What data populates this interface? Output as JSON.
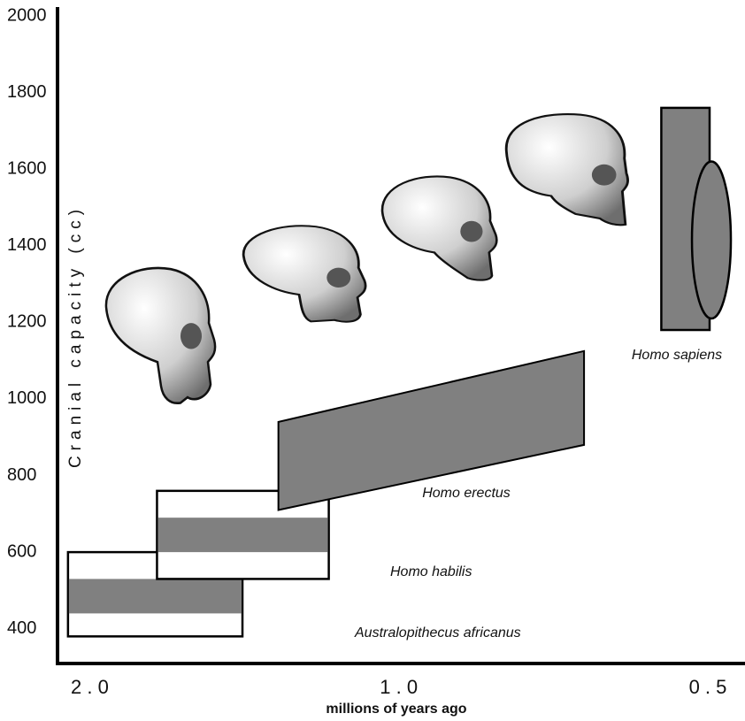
{
  "chart_data": {
    "type": "range",
    "ylabel": "Cranial capacity (cc)",
    "xlabel": "millions of years ago",
    "ylim": [
      300,
      2000
    ],
    "yticks": [
      400,
      600,
      800,
      1000,
      1200,
      1400,
      1600,
      1800,
      2000
    ],
    "xlim": [
      2.15,
      0.46
    ],
    "xscale": "log",
    "xticks": [
      {
        "value": 2,
        "label": "2 . 0"
      },
      {
        "value": 1,
        "label": "1 . 0"
      },
      {
        "value": 0.5,
        "label": "0 . 5"
      }
    ],
    "color": "#808080",
    "series": [
      {
        "name": "Australopithecus africanus",
        "x": [
          2.1,
          1.42
        ],
        "y_range": [
          380,
          600
        ],
        "y_core": [
          440,
          530
        ]
      },
      {
        "name": "Homo habilis",
        "x": [
          1.72,
          1.17
        ],
        "y_range": [
          530,
          760
        ],
        "y_core": [
          600,
          690
        ]
      },
      {
        "name": "Homo erectus",
        "x": [
          1.31,
          0.66
        ],
        "y_start": [
          710,
          940
        ],
        "y_end": [
          880,
          1125
        ]
      },
      {
        "name": "Homo sapiens",
        "x": [
          0.555,
          0.498
        ],
        "y_range": [
          1180,
          1760
        ],
        "ellipse_x": 0.496,
        "ellipse_y": [
          1210,
          1620
        ]
      }
    ]
  }
}
